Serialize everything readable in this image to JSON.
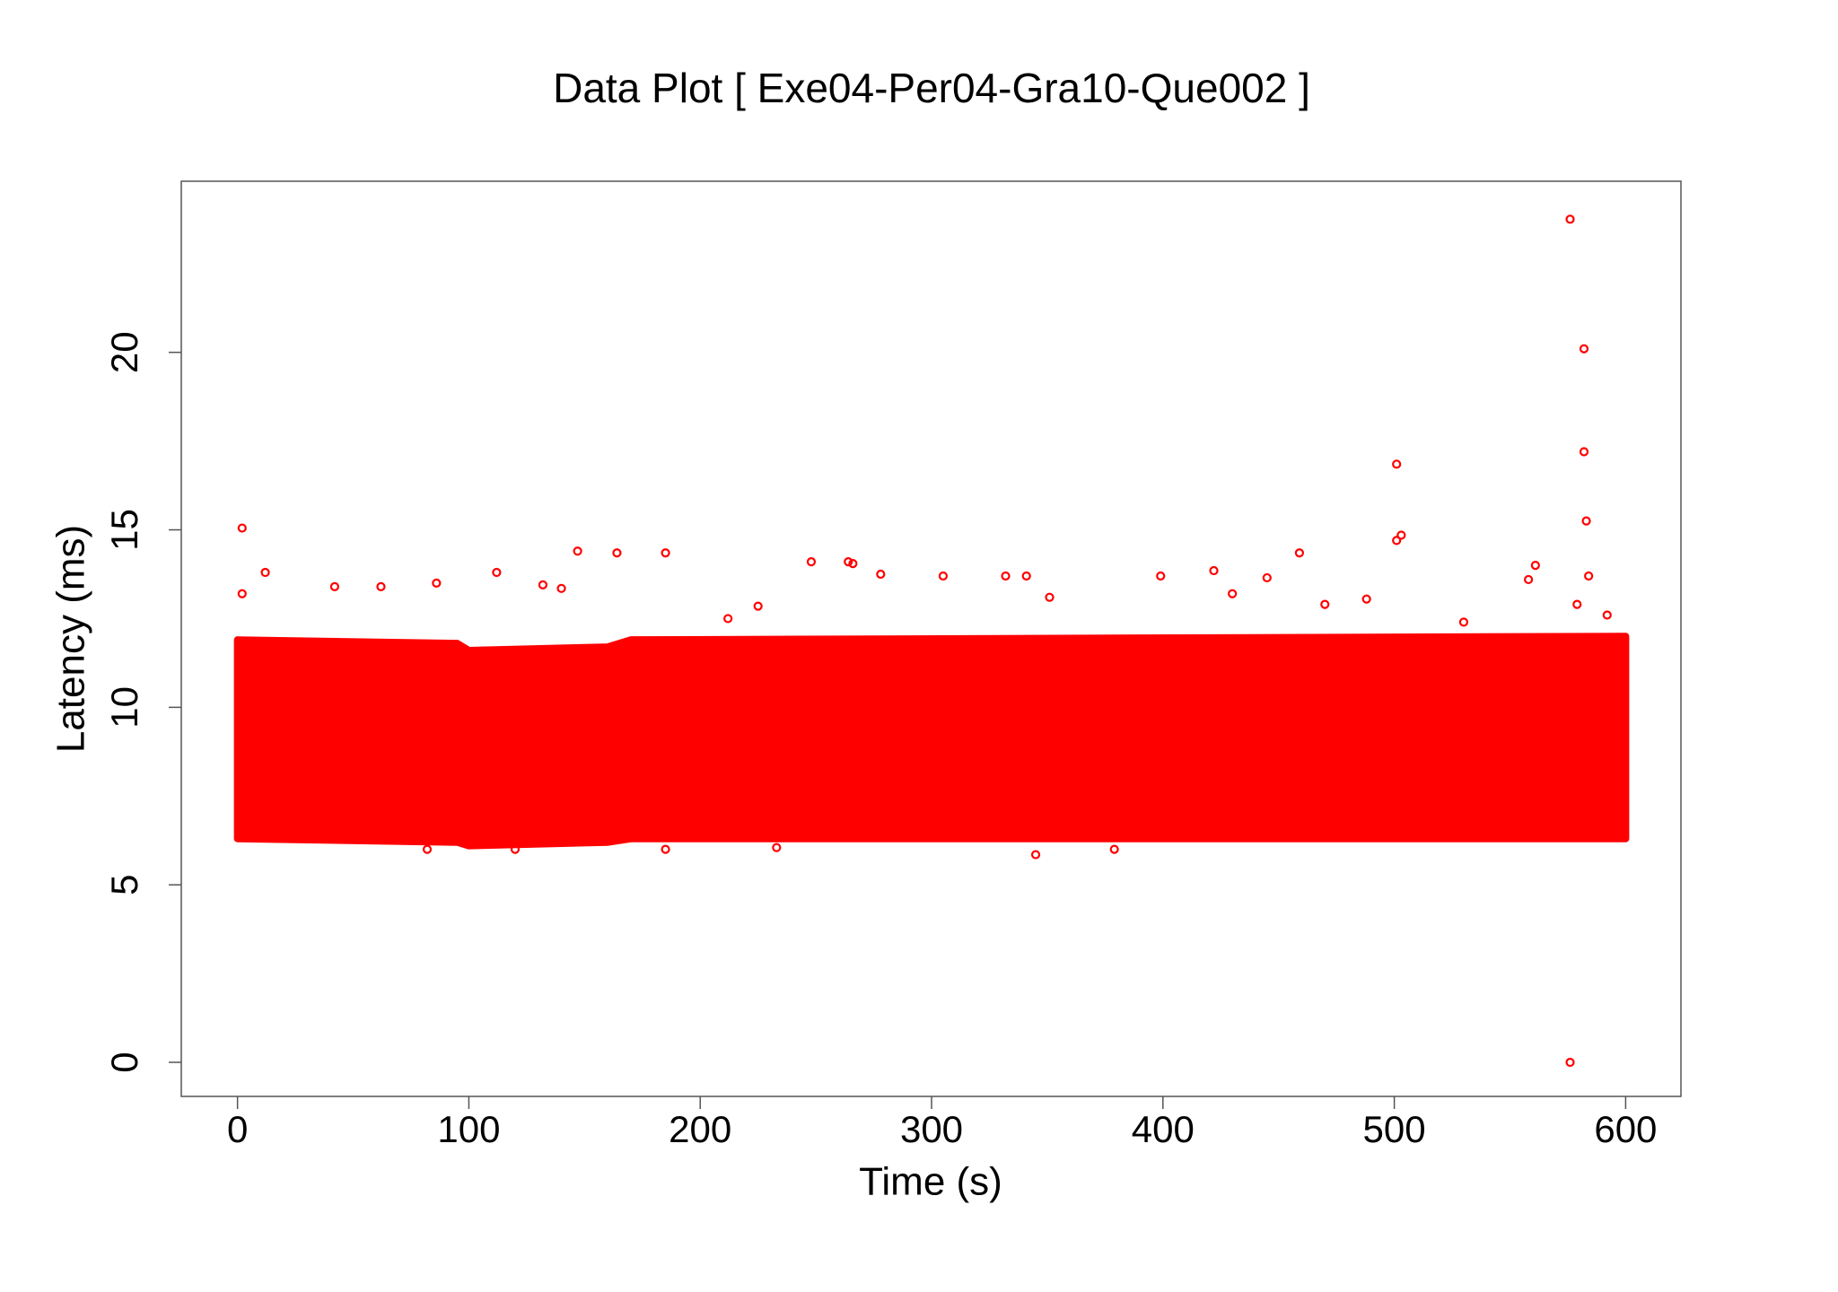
{
  "chart_data": {
    "type": "scatter",
    "title": "Data Plot [ Exe04-Per04-Gra10-Que002 ]",
    "x_label": "Time (s)",
    "y_label": "Latency (ms)",
    "xlim": [
      -24.3,
      623.9
    ],
    "ylim": [
      -0.96,
      24.82
    ],
    "xticks": [
      0,
      100,
      200,
      300,
      400,
      500,
      600
    ],
    "yticks": [
      0,
      5,
      10,
      15,
      20
    ],
    "color": "#ff0000",
    "band": {
      "x": [
        0,
        95,
        100,
        160,
        170,
        600
      ],
      "low": [
        6.3,
        6.2,
        6.1,
        6.2,
        6.3,
        6.3
      ],
      "high": [
        11.9,
        11.8,
        11.6,
        11.7,
        11.9,
        12.0
      ]
    },
    "x": [
      2,
      2,
      12,
      42,
      62,
      86,
      112,
      132,
      140,
      147,
      164,
      185,
      248,
      264,
      266,
      278,
      305,
      332,
      341,
      351,
      399,
      422,
      445,
      459,
      501,
      501,
      503,
      561,
      558,
      576,
      582,
      582,
      583,
      584,
      576,
      345,
      120,
      82,
      233,
      185,
      379,
      579,
      592,
      530,
      488,
      470,
      430,
      212,
      225
    ],
    "values": [
      15.05,
      13.2,
      13.8,
      13.4,
      13.4,
      13.5,
      13.8,
      13.45,
      13.35,
      14.4,
      14.35,
      14.35,
      14.1,
      14.1,
      14.05,
      13.75,
      13.7,
      13.7,
      13.7,
      13.1,
      13.7,
      13.85,
      13.65,
      14.35,
      16.85,
      14.7,
      14.85,
      14.0,
      13.6,
      23.75,
      20.1,
      17.2,
      15.25,
      13.7,
      0,
      5.85,
      6.0,
      6.0,
      6.05,
      6.0,
      6.0,
      12.9,
      12.6,
      12.4,
      13.05,
      12.9,
      13.2,
      12.5,
      12.85
    ]
  }
}
